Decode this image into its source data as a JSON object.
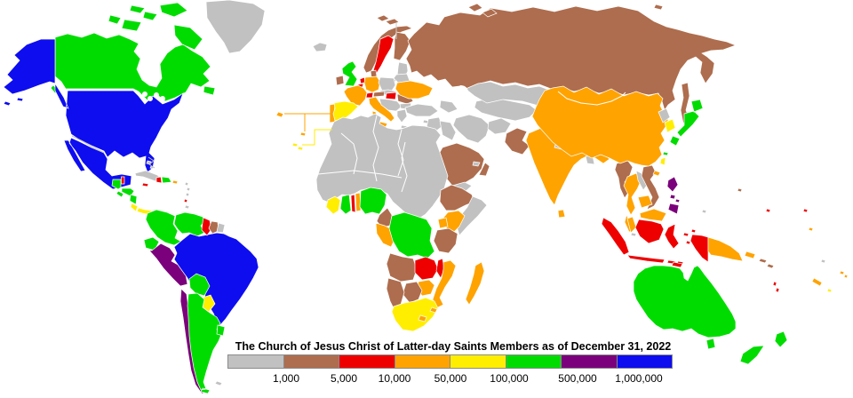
{
  "title": "The Church of Jesus Christ of Latter-day Saints Members as of December 31, 2022",
  "legend": {
    "colors": {
      "lt1k": "#c1c1c1",
      "1k5k": "#ae6d4e",
      "5k10k": "#ee0000",
      "10k50k": "#ffa300",
      "50k100k": "#ffee00",
      "100k500k": "#00dc00",
      "500k1m": "#7b007b",
      "gt1m": "#0d0df0"
    },
    "order": [
      "lt1k",
      "1k5k",
      "5k10k",
      "10k50k",
      "50k100k",
      "100k500k",
      "500k1m",
      "gt1m"
    ],
    "labels": [
      "1,000",
      "5,000",
      "10,000",
      "50,000",
      "100,000",
      "500,000",
      "1,000,000"
    ]
  },
  "map": {
    "background": "#ffffff",
    "border_color": "#ffffff",
    "regions": [
      {
        "name": "greenland",
        "category": "lt1k"
      },
      {
        "name": "canada",
        "category": "100k500k"
      },
      {
        "name": "usa",
        "category": "gt1m"
      },
      {
        "name": "mexico",
        "category": "gt1m"
      },
      {
        "name": "belize",
        "category": "5k10k"
      },
      {
        "name": "guatemala",
        "category": "100k500k"
      },
      {
        "name": "honduras",
        "category": "100k500k"
      },
      {
        "name": "el-salvador",
        "category": "100k500k"
      },
      {
        "name": "nicaragua",
        "category": "100k500k"
      },
      {
        "name": "costa-rica",
        "category": "50k100k"
      },
      {
        "name": "panama",
        "category": "50k100k"
      },
      {
        "name": "cuba",
        "category": "lt1k"
      },
      {
        "name": "jamaica",
        "category": "5k10k"
      },
      {
        "name": "haiti",
        "category": "5k10k"
      },
      {
        "name": "dominican-republic",
        "category": "100k500k"
      },
      {
        "name": "puerto-rico",
        "category": "10k50k"
      },
      {
        "name": "bahamas",
        "category": "lt1k"
      },
      {
        "name": "lesser-antilles",
        "category": "lt1k"
      },
      {
        "name": "lesser-antilles-red",
        "category": "5k10k"
      },
      {
        "name": "trinidad",
        "category": "lt1k"
      },
      {
        "name": "colombia",
        "category": "100k500k"
      },
      {
        "name": "venezuela",
        "category": "100k500k"
      },
      {
        "name": "ecuador",
        "category": "100k500k"
      },
      {
        "name": "peru",
        "category": "500k1m"
      },
      {
        "name": "brazil",
        "category": "gt1m"
      },
      {
        "name": "guyana",
        "category": "5k10k"
      },
      {
        "name": "suriname",
        "category": "1k5k"
      },
      {
        "name": "french-guiana",
        "category": "lt1k"
      },
      {
        "name": "bolivia",
        "category": "100k500k"
      },
      {
        "name": "paraguay",
        "category": "50k100k"
      },
      {
        "name": "chile",
        "category": "500k1m"
      },
      {
        "name": "argentina",
        "category": "100k500k"
      },
      {
        "name": "uruguay",
        "category": "100k500k"
      },
      {
        "name": "falklands",
        "category": "lt1k"
      },
      {
        "name": "iceland",
        "category": "lt1k"
      },
      {
        "name": "uk",
        "category": "100k500k"
      },
      {
        "name": "ireland",
        "category": "1k5k"
      },
      {
        "name": "norway",
        "category": "1k5k"
      },
      {
        "name": "svalbard",
        "category": "1k5k"
      },
      {
        "name": "sweden",
        "category": "5k10k"
      },
      {
        "name": "finland",
        "category": "1k5k"
      },
      {
        "name": "denmark",
        "category": "1k5k"
      },
      {
        "name": "baltics",
        "category": "lt1k"
      },
      {
        "name": "kaliningrad",
        "category": "lt1k"
      },
      {
        "name": "netherlands",
        "category": "5k10k"
      },
      {
        "name": "belgium",
        "category": "5k10k"
      },
      {
        "name": "germany",
        "category": "10k50k"
      },
      {
        "name": "poland",
        "category": "lt1k"
      },
      {
        "name": "czech-slovakia",
        "category": "lt1k"
      },
      {
        "name": "france",
        "category": "10k50k"
      },
      {
        "name": "switzerland",
        "category": "5k10k"
      },
      {
        "name": "austria",
        "category": "1k5k"
      },
      {
        "name": "hungary",
        "category": "5k10k"
      },
      {
        "name": "italy",
        "category": "10k50k"
      },
      {
        "name": "balkans",
        "category": "lt1k"
      },
      {
        "name": "romania",
        "category": "1k5k"
      },
      {
        "name": "bulgaria",
        "category": "lt1k"
      },
      {
        "name": "greece",
        "category": "lt1k"
      },
      {
        "name": "ukraine",
        "category": "10k50k"
      },
      {
        "name": "belarus",
        "category": "lt1k"
      },
      {
        "name": "portugal",
        "category": "10k50k"
      },
      {
        "name": "spain",
        "category": "50k100k"
      },
      {
        "name": "russia",
        "category": "1k5k"
      },
      {
        "name": "sakhalin",
        "category": "1k5k"
      },
      {
        "name": "novaya-zemlya",
        "category": "1k5k"
      },
      {
        "name": "turkey",
        "category": "lt1k"
      },
      {
        "name": "cyprus",
        "category": "lt1k"
      },
      {
        "name": "levant",
        "category": "lt1k"
      },
      {
        "name": "iraq",
        "category": "lt1k"
      },
      {
        "name": "saudi-arabia",
        "category": "1k5k"
      },
      {
        "name": "yemen",
        "category": "lt1k"
      },
      {
        "name": "oman",
        "category": "1k5k"
      },
      {
        "name": "uae",
        "category": "lt1k"
      },
      {
        "name": "iran",
        "category": "lt1k"
      },
      {
        "name": "afghanistan",
        "category": "lt1k"
      },
      {
        "name": "pakistan",
        "category": "1k5k"
      },
      {
        "name": "central-asia",
        "category": "lt1k"
      },
      {
        "name": "kazakhstan",
        "category": "lt1k"
      },
      {
        "name": "caucasus",
        "category": "lt1k"
      },
      {
        "name": "sahara",
        "category": "lt1k"
      },
      {
        "name": "ethiopia",
        "category": "1k5k"
      },
      {
        "name": "somalia",
        "category": "lt1k"
      },
      {
        "name": "kenya",
        "category": "10k50k"
      },
      {
        "name": "uganda",
        "category": "10k50k"
      },
      {
        "name": "tanzania",
        "category": "1k5k"
      },
      {
        "name": "ivory-coast",
        "category": "50k100k"
      },
      {
        "name": "ghana",
        "category": "100k500k"
      },
      {
        "name": "togo",
        "category": "5k10k"
      },
      {
        "name": "benin",
        "category": "10k50k"
      },
      {
        "name": "nigeria",
        "category": "100k500k"
      },
      {
        "name": "cameroon",
        "category": "1k5k"
      },
      {
        "name": "gabon-congo",
        "category": "10k50k"
      },
      {
        "name": "drc",
        "category": "100k500k"
      },
      {
        "name": "angola",
        "category": "1k5k"
      },
      {
        "name": "zambia",
        "category": "5k10k"
      },
      {
        "name": "malawi",
        "category": "5k10k"
      },
      {
        "name": "mozambique",
        "category": "10k50k"
      },
      {
        "name": "zimbabwe",
        "category": "10k50k"
      },
      {
        "name": "botswana",
        "category": "1k5k"
      },
      {
        "name": "namibia",
        "category": "1k5k"
      },
      {
        "name": "south-africa",
        "category": "50k100k"
      },
      {
        "name": "lesotho",
        "category": "10k50k"
      },
      {
        "name": "eswatini",
        "category": "10k50k"
      },
      {
        "name": "madagascar",
        "category": "10k50k"
      },
      {
        "name": "india",
        "category": "10k50k"
      },
      {
        "name": "sri-lanka",
        "category": "10k50k"
      },
      {
        "name": "nepal",
        "category": "lt1k"
      },
      {
        "name": "bhutan",
        "category": "lt1k"
      },
      {
        "name": "bangladesh",
        "category": "lt1k"
      },
      {
        "name": "myanmar",
        "category": "1k5k"
      },
      {
        "name": "thailand",
        "category": "10k50k"
      },
      {
        "name": "laos",
        "category": "lt1k"
      },
      {
        "name": "vietnam",
        "category": "1k5k"
      },
      {
        "name": "cambodia",
        "category": "10k50k"
      },
      {
        "name": "malaysia",
        "category": "10k50k"
      },
      {
        "name": "singapore",
        "category": "lt1k"
      },
      {
        "name": "china",
        "category": "10k50k"
      },
      {
        "name": "hainan",
        "category": "10k50k"
      },
      {
        "name": "north-korea",
        "category": "lt1k"
      },
      {
        "name": "south-korea",
        "category": "50k100k"
      },
      {
        "name": "japan",
        "category": "100k500k"
      },
      {
        "name": "taiwan",
        "category": "50k100k"
      },
      {
        "name": "philippines",
        "category": "500k1m"
      },
      {
        "name": "indonesia",
        "category": "5k10k"
      },
      {
        "name": "timor",
        "category": "5k10k"
      },
      {
        "name": "papua-new-guinea",
        "category": "10k50k"
      },
      {
        "name": "new-britain",
        "category": "10k50k"
      },
      {
        "name": "solomon-islands",
        "category": "1k5k"
      },
      {
        "name": "palau",
        "category": "1k5k"
      },
      {
        "name": "micronesia",
        "category": "lt1k"
      },
      {
        "name": "kiribati",
        "category": "5k10k"
      },
      {
        "name": "marshall",
        "category": "5k10k"
      },
      {
        "name": "nauru-tuvalu",
        "category": "10k50k"
      },
      {
        "name": "vanuatu",
        "category": "5k10k"
      },
      {
        "name": "new-caledonia",
        "category": "10k50k"
      },
      {
        "name": "fiji",
        "category": "10k50k"
      },
      {
        "name": "samoa-tonga",
        "category": "50k100k"
      },
      {
        "name": "pacific-gray",
        "category": "lt1k"
      },
      {
        "name": "australia",
        "category": "100k500k"
      },
      {
        "name": "new-zealand",
        "category": "100k500k"
      },
      {
        "name": "azores-madeira",
        "category": "10k50k"
      },
      {
        "name": "canary",
        "category": "50k100k"
      }
    ]
  }
}
